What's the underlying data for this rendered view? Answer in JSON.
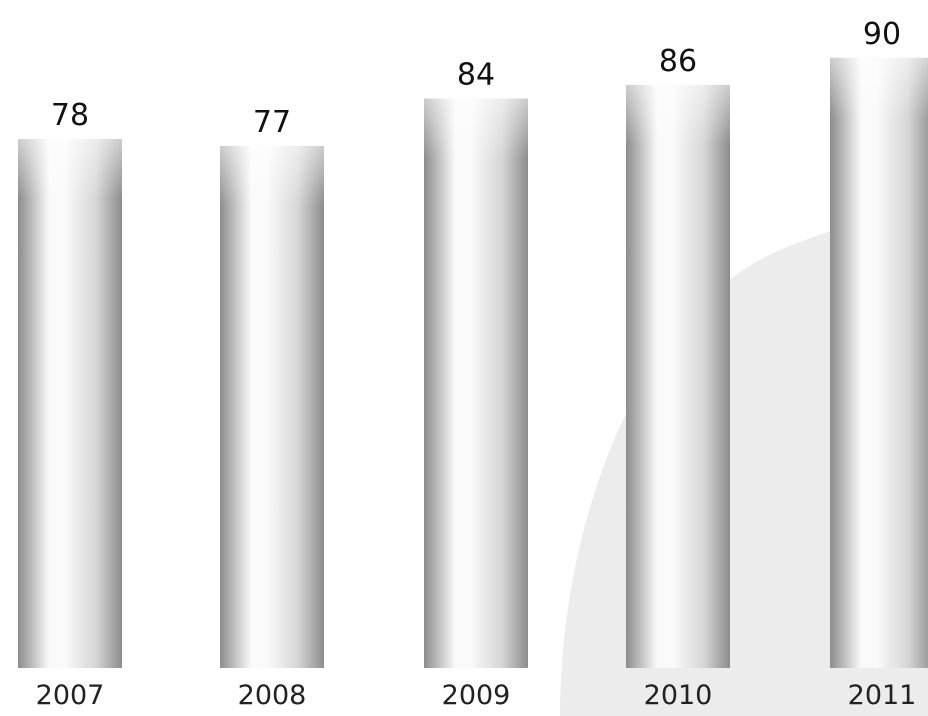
{
  "chart_data": {
    "type": "bar",
    "categories": [
      "2007",
      "2008",
      "2009",
      "2010",
      "2011"
    ],
    "values": [
      78,
      77,
      84,
      86,
      90
    ],
    "data_labels": [
      "78",
      "77",
      "84",
      "86",
      "90"
    ],
    "title": "",
    "xlabel": "",
    "ylabel": "",
    "ylim": [
      0,
      100
    ],
    "grid": false,
    "legend": "none"
  },
  "colors": {
    "background": "#ffffff",
    "bar_light": "#fafafa",
    "bar_mid": "#d6d6d6",
    "bar_dark": "#8c8c8c",
    "decor_shape": "#ececec"
  }
}
